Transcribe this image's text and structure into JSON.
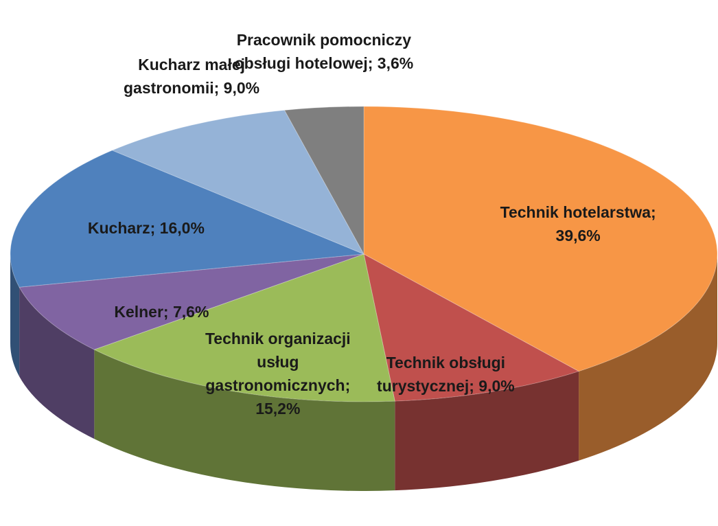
{
  "chart_data": {
    "type": "pie",
    "3d": true,
    "categories": [
      "Technik hotelarstwa",
      "Technik obsługi turystycznej",
      "Technik organizacji usług gastronomicznych",
      "Kelner",
      "Kucharz",
      "Kucharz małej gastronomii",
      "Pracownik pomocniczy obsługi hotelowej"
    ],
    "values": [
      39.6,
      9.0,
      15.2,
      7.6,
      16.0,
      9.0,
      3.6
    ],
    "value_labels": [
      "Technik hotelarstwa; 39,6%",
      "Technik obsługi turystycznej; 9,0%",
      "Technik organizacji usług gastronomicznych; 15,2%",
      "Kelner; 7,6%",
      "Kucharz; 16,0%",
      "Kucharz małej gastronomii; 9,0%",
      "Pracownik pomocniczy obsługi hotelowej; 3,6%"
    ],
    "colors": [
      "#f79646",
      "#c0504d",
      "#9bbb59",
      "#8064a2",
      "#4f81bd",
      "#95b3d7",
      "#7f7f7f"
    ]
  }
}
